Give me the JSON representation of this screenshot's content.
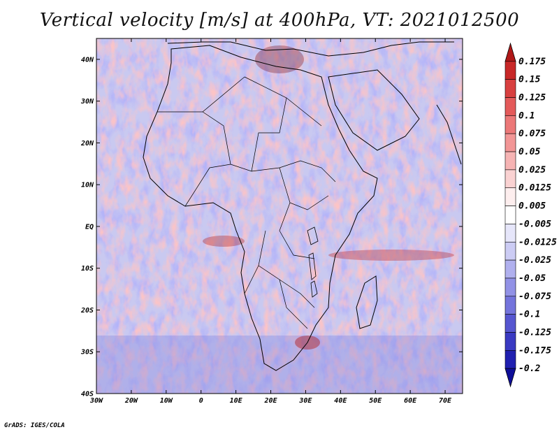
{
  "title": "Vertical velocity [m/s] at 400hPa, VT: 2021012500",
  "credit": "GrADS: IGES/COLA",
  "map": {
    "lat_labels": [
      "40N",
      "30N",
      "20N",
      "10N",
      "EQ",
      "10S",
      "20S",
      "30S",
      "40S"
    ],
    "lon_labels": [
      "30W",
      "20W",
      "10W",
      "0",
      "10E",
      "20E",
      "30E",
      "40E",
      "50E",
      "60E",
      "70E"
    ],
    "lat_range": [
      -40,
      45
    ],
    "lon_range": [
      -30,
      75
    ]
  },
  "colorbar": {
    "labels": [
      "0.175",
      "0.15",
      "0.125",
      "0.1",
      "0.075",
      "0.05",
      "0.025",
      "0.0125",
      "0.005",
      "-0.005",
      "-0.0125",
      "-0.025",
      "-0.05",
      "-0.075",
      "-0.1",
      "-0.125",
      "-0.175",
      "-0.2"
    ],
    "colors": [
      "#b01818",
      "#c82828",
      "#d84040",
      "#e45a5a",
      "#ec7878",
      "#f29696",
      "#f6b4b4",
      "#fad2d2",
      "#fdeeee",
      "#ffffff",
      "#e6e6fa",
      "#ccccf4",
      "#b0b0ee",
      "#9292e6",
      "#7474dc",
      "#5656d0",
      "#3a3ac2",
      "#2020b0",
      "#0e0e98"
    ]
  }
}
